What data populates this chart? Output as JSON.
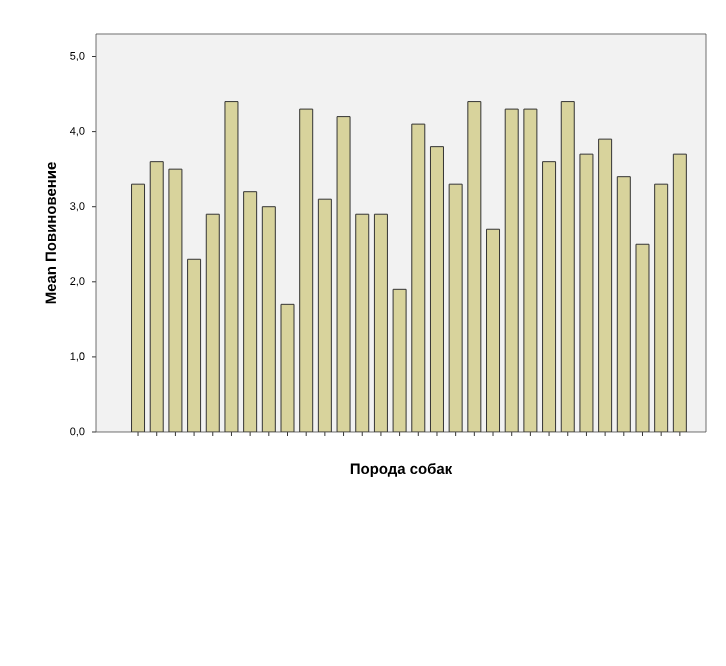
{
  "chart_data": {
    "type": "bar",
    "xlabel": "Порода собак",
    "ylabel": "Mean Повиновение",
    "categories": [
      null,
      null,
      null,
      null,
      null,
      null,
      null,
      null,
      null,
      null,
      null,
      null,
      null,
      null,
      null,
      null,
      null,
      null,
      null,
      null,
      null,
      null,
      null,
      null,
      null,
      null,
      null,
      null,
      null,
      null
    ],
    "values": [
      3.3,
      3.6,
      3.5,
      2.3,
      2.9,
      4.4,
      3.2,
      3.0,
      1.7,
      4.3,
      3.1,
      4.2,
      2.9,
      2.9,
      1.9,
      4.1,
      3.8,
      3.3,
      4.4,
      2.7,
      4.3,
      4.3,
      3.6,
      4.4,
      3.7,
      3.9,
      3.4,
      2.5,
      3.3,
      3.7
    ],
    "color": "#d8d39c",
    "ylim": [
      0,
      5.3
    ],
    "yticks": [
      {
        "value": 0,
        "label": "0,0"
      },
      {
        "value": 1,
        "label": "1,0"
      },
      {
        "value": 2,
        "label": "2,0"
      },
      {
        "value": 3,
        "label": "3,0"
      },
      {
        "value": 4,
        "label": "4,0"
      },
      {
        "value": 5,
        "label": "5,0"
      }
    ],
    "grid": false
  }
}
